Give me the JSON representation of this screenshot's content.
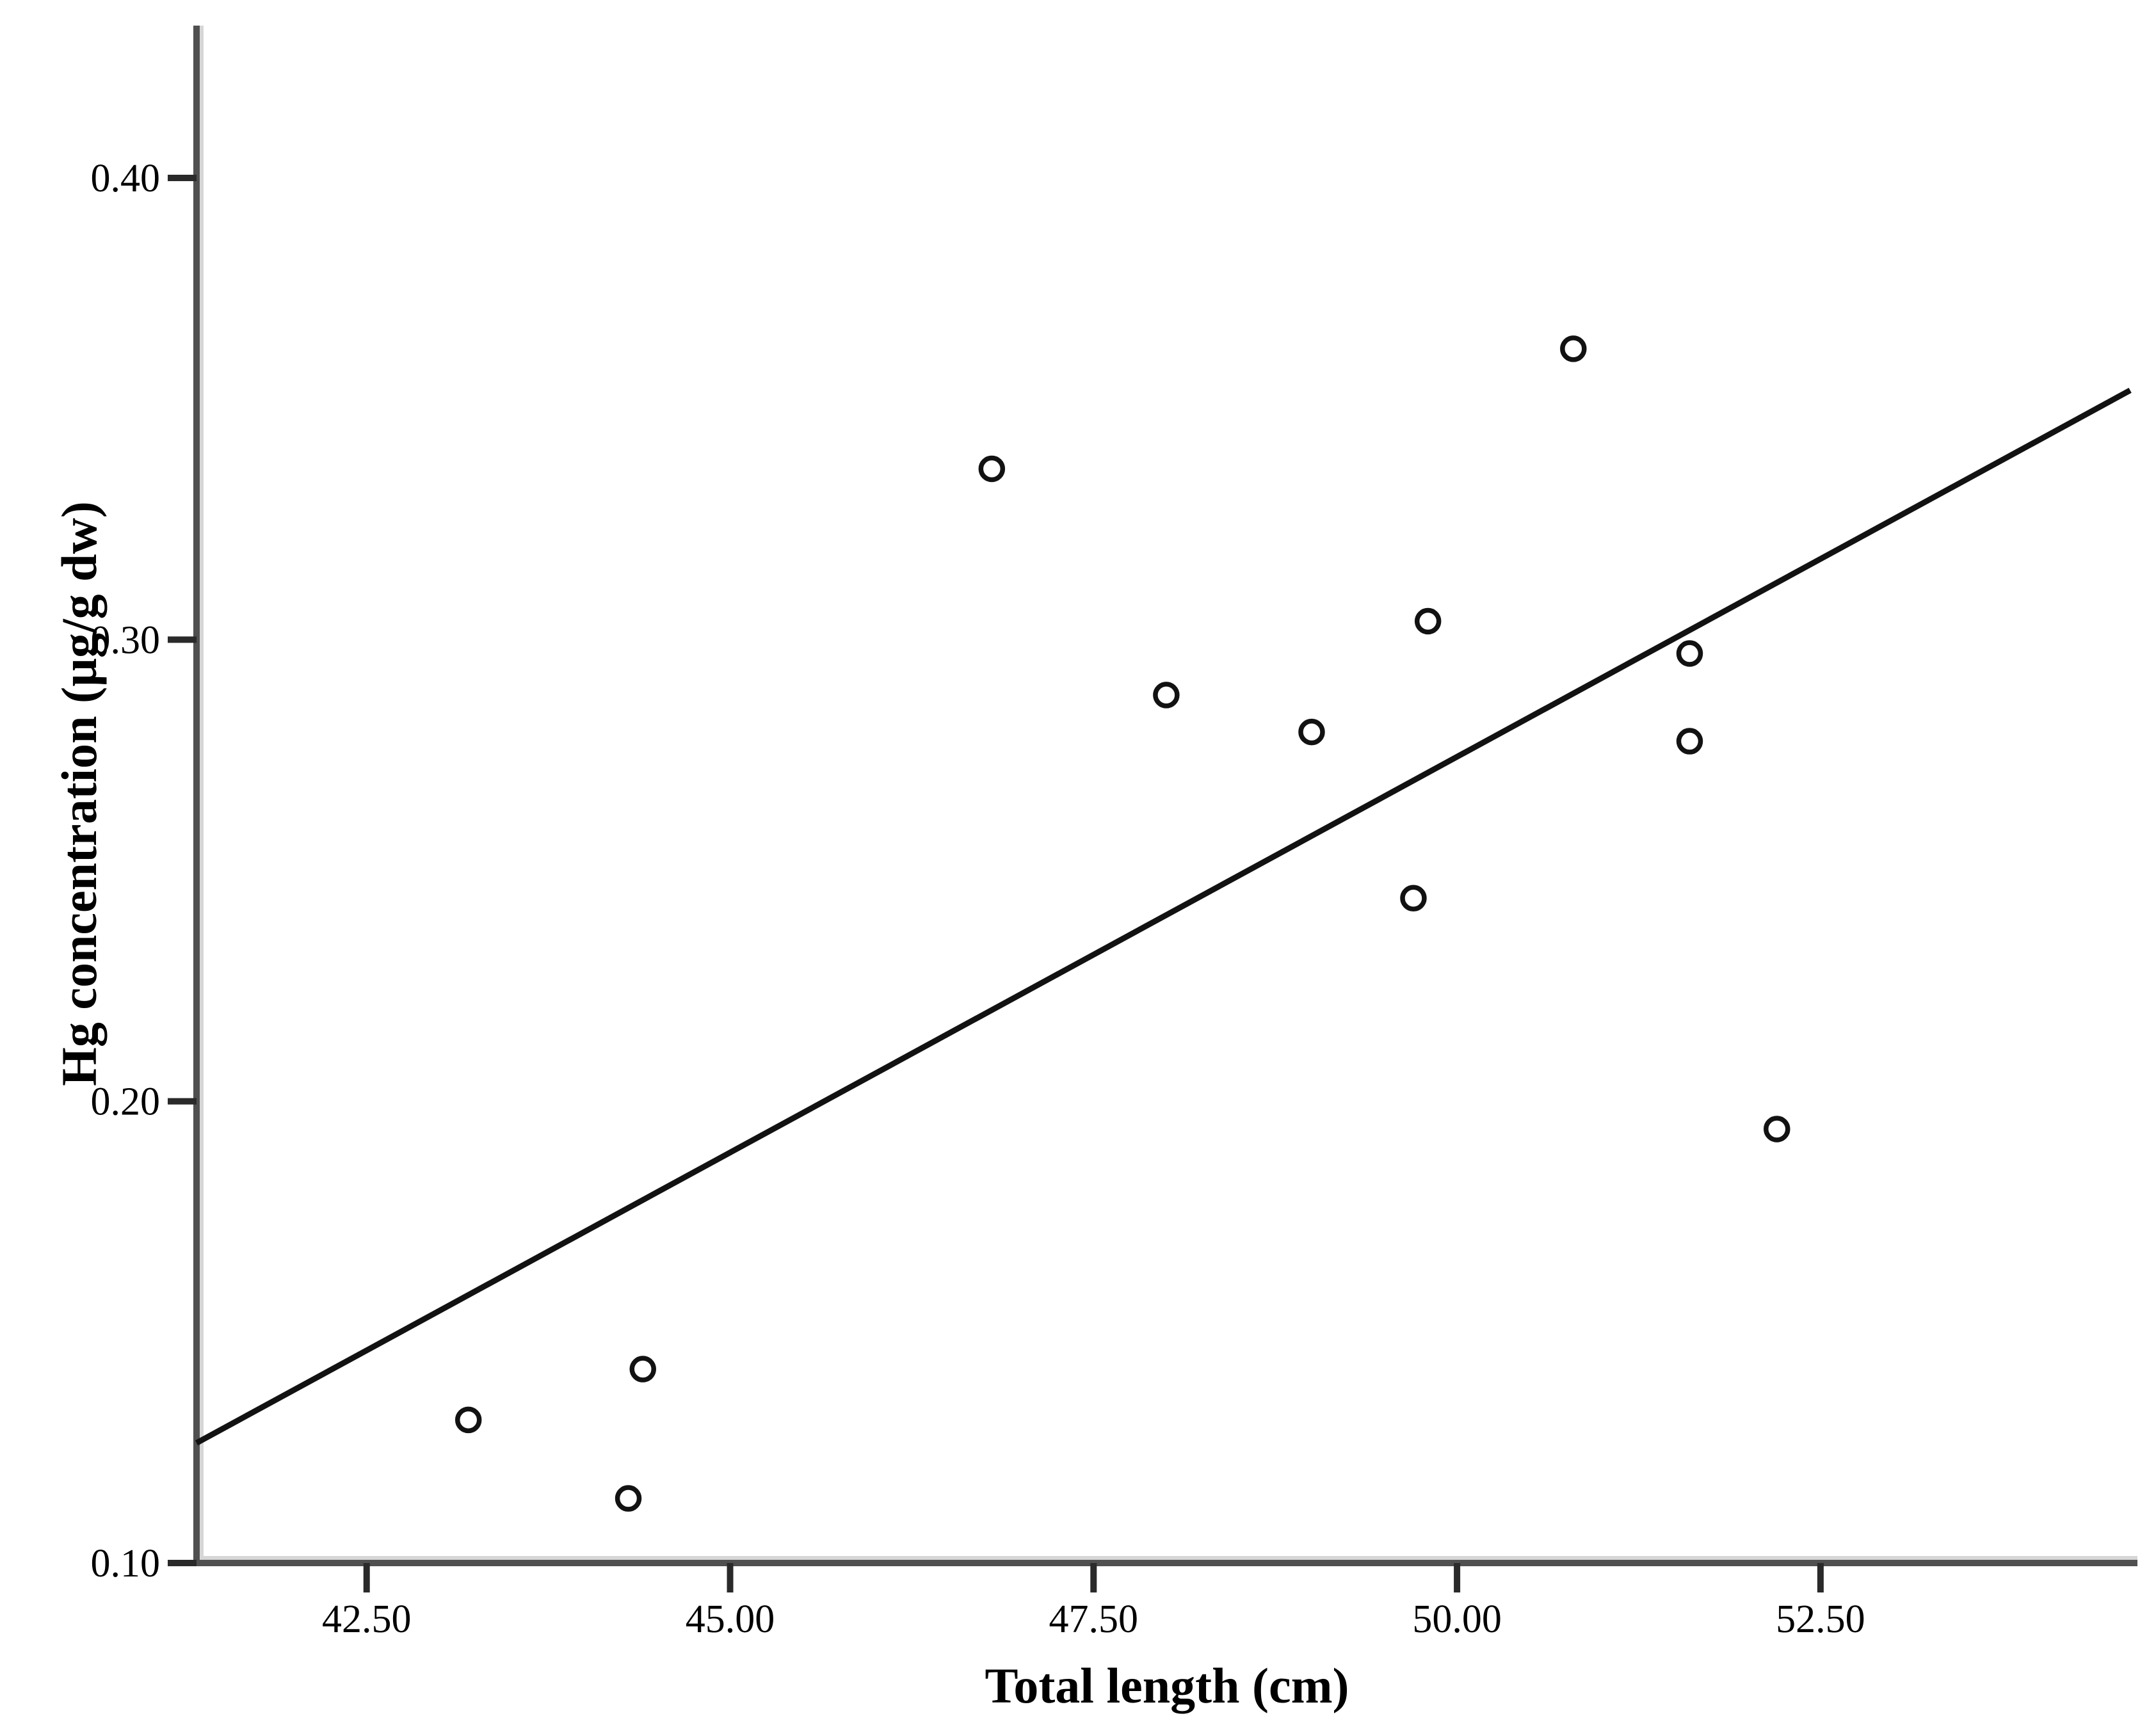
{
  "figure": {
    "background": "#ffffff",
    "axis_color": "#505050",
    "axis_inner_edge_color": "#d6d6d6",
    "tick_color": "#2a2a2a",
    "text_color": "#000000",
    "marker_color": "#121212",
    "trendline_color": "#121212"
  },
  "chart_data": {
    "type": "scatter",
    "title": "",
    "xlabel": "Total length (cm)",
    "ylabel": "Hg concentration (µg/g dw)",
    "xlim": [
      41.33,
      54.68
    ],
    "ylim": [
      0.1,
      0.433
    ],
    "grid": false,
    "legend": "none",
    "marker": "open-circle",
    "x_ticks": [
      {
        "value": 42.5,
        "label": "42.50"
      },
      {
        "value": 45.0,
        "label": "45.00"
      },
      {
        "value": 47.5,
        "label": "47.50"
      },
      {
        "value": 50.0,
        "label": "50.00"
      },
      {
        "value": 52.5,
        "label": "52.50"
      }
    ],
    "y_ticks": [
      {
        "value": 0.1,
        "label": "0.10"
      },
      {
        "value": 0.2,
        "label": "0.20"
      },
      {
        "value": 0.3,
        "label": "0.30"
      },
      {
        "value": 0.4,
        "label": "0.40"
      }
    ],
    "points": [
      {
        "x": 43.2,
        "y": 0.131
      },
      {
        "x": 44.3,
        "y": 0.114
      },
      {
        "x": 44.4,
        "y": 0.142
      },
      {
        "x": 46.8,
        "y": 0.337
      },
      {
        "x": 48.0,
        "y": 0.288
      },
      {
        "x": 49.0,
        "y": 0.28
      },
      {
        "x": 49.7,
        "y": 0.244
      },
      {
        "x": 49.8,
        "y": 0.304
      },
      {
        "x": 50.8,
        "y": 0.363
      },
      {
        "x": 51.6,
        "y": 0.297
      },
      {
        "x": 51.6,
        "y": 0.278
      },
      {
        "x": 52.2,
        "y": 0.194
      }
    ],
    "trendline": {
      "x1": 41.33,
      "y1": 0.126,
      "x2": 54.63,
      "y2": 0.354
    }
  }
}
